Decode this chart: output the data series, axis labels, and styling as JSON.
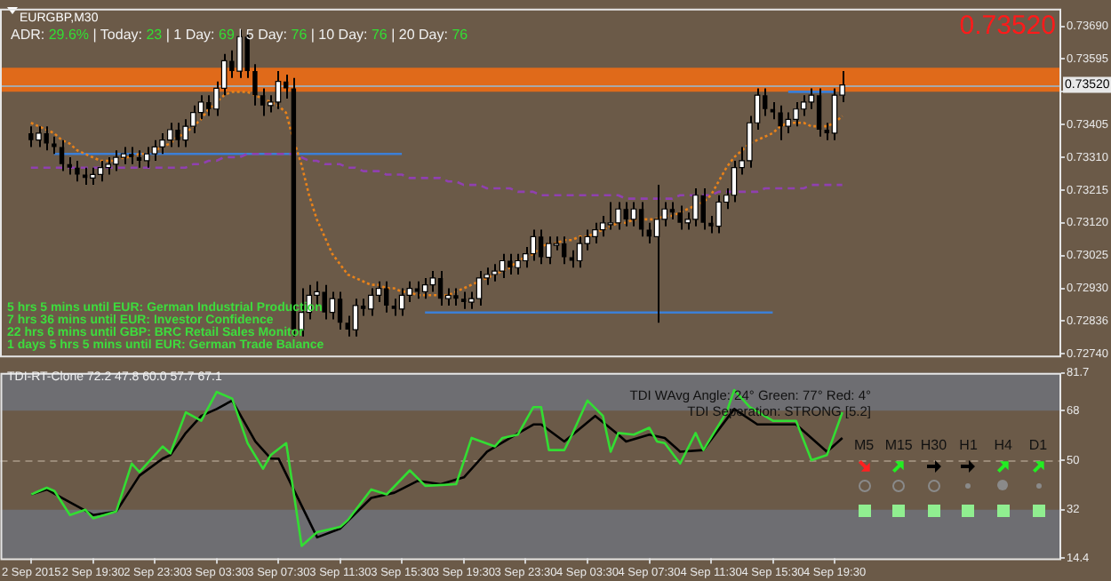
{
  "chart_data": [
    {
      "type": "candlestick",
      "title": "EURGBP,M30",
      "x": [
        "2015-09-02T15:30",
        "2015-09-02T16:00",
        "2015-09-02T16:30",
        "2015-09-02T17:00",
        "2015-09-02T17:30",
        "2015-09-02T18:00",
        "2015-09-02T18:30",
        "2015-09-02T19:00",
        "2015-09-02T19:30",
        "2015-09-02T20:00",
        "2015-09-02T20:30",
        "2015-09-02T21:00",
        "2015-09-02T21:30",
        "2015-09-02T22:00",
        "2015-09-02T22:30",
        "2015-09-02T23:00",
        "2015-09-02T23:30",
        "2015-09-03T00:00",
        "2015-09-03T00:30",
        "2015-09-03T01:00",
        "2015-09-03T01:30",
        "2015-09-03T02:00",
        "2015-09-03T02:30",
        "2015-09-03T03:00",
        "2015-09-03T03:30",
        "2015-09-03T04:00",
        "2015-09-03T04:30",
        "2015-09-03T05:00",
        "2015-09-03T05:30",
        "2015-09-03T06:00",
        "2015-09-03T06:30",
        "2015-09-03T07:00",
        "2015-09-03T07:30",
        "2015-09-03T08:00",
        "2015-09-03T08:30",
        "2015-09-03T09:00",
        "2015-09-03T09:30",
        "2015-09-03T10:00",
        "2015-09-03T10:30",
        "2015-09-03T11:00",
        "2015-09-03T11:30",
        "2015-09-03T12:00",
        "2015-09-03T12:30",
        "2015-09-03T13:00",
        "2015-09-03T13:30",
        "2015-09-03T14:00",
        "2015-09-03T14:30",
        "2015-09-03T15:00",
        "2015-09-03T15:30",
        "2015-09-03T16:00",
        "2015-09-03T16:30",
        "2015-09-03T17:00",
        "2015-09-03T17:30",
        "2015-09-03T18:00",
        "2015-09-03T18:30",
        "2015-09-03T19:00",
        "2015-09-03T19:30",
        "2015-09-03T20:00",
        "2015-09-03T20:30",
        "2015-09-03T21:00",
        "2015-09-03T21:30",
        "2015-09-03T22:00",
        "2015-09-03T22:30",
        "2015-09-03T23:00",
        "2015-09-03T23:30",
        "2015-09-04T00:00",
        "2015-09-04T00:30",
        "2015-09-04T01:00",
        "2015-09-04T01:30",
        "2015-09-04T02:00",
        "2015-09-04T02:30",
        "2015-09-04T03:00",
        "2015-09-04T03:30",
        "2015-09-04T04:00",
        "2015-09-04T04:30",
        "2015-09-04T05:00",
        "2015-09-04T05:30",
        "2015-09-04T06:00",
        "2015-09-04T06:30",
        "2015-09-04T07:00",
        "2015-09-04T07:30",
        "2015-09-04T08:00",
        "2015-09-04T08:30",
        "2015-09-04T09:00",
        "2015-09-04T09:30",
        "2015-09-04T10:00",
        "2015-09-04T10:30",
        "2015-09-04T11:00",
        "2015-09-04T11:30",
        "2015-09-04T12:00",
        "2015-09-04T12:30",
        "2015-09-04T13:00",
        "2015-09-04T13:30",
        "2015-09-04T14:00",
        "2015-09-04T14:30",
        "2015-09-04T15:00",
        "2015-09-04T15:30",
        "2015-09-04T16:00",
        "2015-09-04T16:30",
        "2015-09-04T17:00",
        "2015-09-04T17:30",
        "2015-09-04T18:00",
        "2015-09-04T18:30",
        "2015-09-04T19:00",
        "2015-09-04T19:30",
        "2015-09-04T20:00"
      ],
      "ohlc": [
        [
          0.7338,
          0.734,
          0.7334,
          0.7336
        ],
        [
          0.7336,
          0.734,
          0.7334,
          0.7338
        ],
        [
          0.7338,
          0.734,
          0.7333,
          0.7335
        ],
        [
          0.7335,
          0.7337,
          0.7332,
          0.7334
        ],
        [
          0.7334,
          0.7336,
          0.7327,
          0.7329
        ],
        [
          0.7329,
          0.7331,
          0.7326,
          0.7328
        ],
        [
          0.7328,
          0.733,
          0.7324,
          0.7326
        ],
        [
          0.7326,
          0.7328,
          0.7323,
          0.7325
        ],
        [
          0.7325,
          0.7328,
          0.7323,
          0.7326
        ],
        [
          0.7326,
          0.733,
          0.7324,
          0.7328
        ],
        [
          0.7328,
          0.7331,
          0.7326,
          0.7329
        ],
        [
          0.7329,
          0.7333,
          0.7327,
          0.7331
        ],
        [
          0.7331,
          0.7334,
          0.7329,
          0.7332
        ],
        [
          0.7332,
          0.7334,
          0.7329,
          0.7331
        ],
        [
          0.7331,
          0.7333,
          0.7328,
          0.733
        ],
        [
          0.733,
          0.7334,
          0.7328,
          0.7332
        ],
        [
          0.7332,
          0.7336,
          0.733,
          0.7334
        ],
        [
          0.7334,
          0.7338,
          0.7332,
          0.7336
        ],
        [
          0.7336,
          0.7341,
          0.7334,
          0.7339
        ],
        [
          0.7339,
          0.7341,
          0.7334,
          0.7336
        ],
        [
          0.7336,
          0.7342,
          0.7334,
          0.734
        ],
        [
          0.734,
          0.7346,
          0.7338,
          0.7344
        ],
        [
          0.7344,
          0.7349,
          0.7342,
          0.7347
        ],
        [
          0.7347,
          0.7349,
          0.7343,
          0.7345
        ],
        [
          0.7345,
          0.7353,
          0.7343,
          0.7351
        ],
        [
          0.7351,
          0.7361,
          0.7349,
          0.7359
        ],
        [
          0.7359,
          0.7362,
          0.7354,
          0.7356
        ],
        [
          0.7356,
          0.7368,
          0.7354,
          0.7366
        ],
        [
          0.7366,
          0.7367,
          0.7354,
          0.7356
        ],
        [
          0.7356,
          0.7358,
          0.7346,
          0.7349
        ],
        [
          0.7349,
          0.7351,
          0.7343,
          0.7346
        ],
        [
          0.7346,
          0.7349,
          0.7344,
          0.7347
        ],
        [
          0.7347,
          0.7356,
          0.7345,
          0.7353
        ],
        [
          0.7353,
          0.7355,
          0.7348,
          0.7351
        ],
        [
          0.7351,
          0.7354,
          0.7279,
          0.7281
        ],
        [
          0.7281,
          0.7293,
          0.7279,
          0.7286
        ],
        [
          0.7286,
          0.7294,
          0.7284,
          0.7291
        ],
        [
          0.7291,
          0.7295,
          0.7288,
          0.7292
        ],
        [
          0.7292,
          0.7294,
          0.7284,
          0.7286
        ],
        [
          0.7286,
          0.7292,
          0.7284,
          0.729
        ],
        [
          0.729,
          0.7292,
          0.7281,
          0.7283
        ],
        [
          0.7283,
          0.7285,
          0.7279,
          0.7281
        ],
        [
          0.7281,
          0.729,
          0.7279,
          0.7288
        ],
        [
          0.7288,
          0.729,
          0.7285,
          0.7287
        ],
        [
          0.7287,
          0.7293,
          0.7285,
          0.7291
        ],
        [
          0.7291,
          0.7295,
          0.7289,
          0.7293
        ],
        [
          0.7293,
          0.7295,
          0.7286,
          0.7288
        ],
        [
          0.7288,
          0.729,
          0.7285,
          0.7287
        ],
        [
          0.7287,
          0.7293,
          0.7285,
          0.7291
        ],
        [
          0.7291,
          0.7295,
          0.7289,
          0.7293
        ],
        [
          0.7293,
          0.7295,
          0.729,
          0.7292
        ],
        [
          0.7292,
          0.7296,
          0.729,
          0.7294
        ],
        [
          0.7294,
          0.7298,
          0.7292,
          0.7296
        ],
        [
          0.7296,
          0.7298,
          0.7288,
          0.729
        ],
        [
          0.729,
          0.7293,
          0.7288,
          0.7291
        ],
        [
          0.7291,
          0.7293,
          0.7288,
          0.729
        ],
        [
          0.729,
          0.7292,
          0.7287,
          0.7289
        ],
        [
          0.7289,
          0.7292,
          0.7287,
          0.729
        ],
        [
          0.729,
          0.7298,
          0.7288,
          0.7296
        ],
        [
          0.7296,
          0.7299,
          0.7294,
          0.7297
        ],
        [
          0.7297,
          0.73,
          0.7295,
          0.7298
        ],
        [
          0.7298,
          0.7303,
          0.7296,
          0.7301
        ],
        [
          0.7301,
          0.7303,
          0.7297,
          0.7299
        ],
        [
          0.7299,
          0.7303,
          0.7297,
          0.7301
        ],
        [
          0.7301,
          0.7305,
          0.7299,
          0.7303
        ],
        [
          0.7303,
          0.731,
          0.7301,
          0.7308
        ],
        [
          0.7308,
          0.731,
          0.73,
          0.7302
        ],
        [
          0.7302,
          0.7308,
          0.73,
          0.7306
        ],
        [
          0.7306,
          0.7308,
          0.7304,
          0.7306
        ],
        [
          0.7306,
          0.7308,
          0.73,
          0.7302
        ],
        [
          0.7302,
          0.7304,
          0.7299,
          0.7301
        ],
        [
          0.7301,
          0.7308,
          0.7299,
          0.7306
        ],
        [
          0.7306,
          0.731,
          0.7304,
          0.7308
        ],
        [
          0.7308,
          0.7312,
          0.7306,
          0.731
        ],
        [
          0.731,
          0.7314,
          0.7308,
          0.7312
        ],
        [
          0.7312,
          0.7318,
          0.731,
          0.7312
        ],
        [
          0.7312,
          0.7318,
          0.731,
          0.7316
        ],
        [
          0.7316,
          0.7318,
          0.7311,
          0.7313
        ],
        [
          0.7313,
          0.7318,
          0.7311,
          0.7316
        ],
        [
          0.7316,
          0.7318,
          0.7308,
          0.731
        ],
        [
          0.731,
          0.7312,
          0.7306,
          0.7308
        ],
        [
          0.7308,
          0.7323,
          0.7283,
          0.7313
        ],
        [
          0.7313,
          0.7318,
          0.7311,
          0.7316
        ],
        [
          0.7316,
          0.7318,
          0.7313,
          0.7315
        ],
        [
          0.7315,
          0.7317,
          0.731,
          0.7312
        ],
        [
          0.7312,
          0.7315,
          0.731,
          0.7313
        ],
        [
          0.7313,
          0.7322,
          0.7311,
          0.732
        ],
        [
          0.732,
          0.7322,
          0.731,
          0.7312
        ],
        [
          0.7312,
          0.7314,
          0.7309,
          0.7311
        ],
        [
          0.7311,
          0.732,
          0.7309,
          0.7318
        ],
        [
          0.7318,
          0.7322,
          0.7316,
          0.732
        ],
        [
          0.732,
          0.733,
          0.7318,
          0.7328
        ],
        [
          0.7328,
          0.7334,
          0.7326,
          0.733
        ],
        [
          0.733,
          0.7343,
          0.7328,
          0.7341
        ],
        [
          0.7341,
          0.7351,
          0.7339,
          0.7349
        ],
        [
          0.7349,
          0.7351,
          0.7343,
          0.7345
        ],
        [
          0.7345,
          0.7347,
          0.7342,
          0.7344
        ],
        [
          0.7344,
          0.7346,
          0.7336,
          0.734
        ],
        [
          0.734,
          0.7344,
          0.7338,
          0.7342
        ],
        [
          0.7342,
          0.7347,
          0.734,
          0.7345
        ],
        [
          0.7345,
          0.7349,
          0.7343,
          0.7347
        ],
        [
          0.7347,
          0.7351,
          0.7345,
          0.7349
        ],
        [
          0.7349,
          0.7351,
          0.7337,
          0.7339
        ],
        [
          0.7339,
          0.7341,
          0.7336,
          0.7338
        ],
        [
          0.7338,
          0.7351,
          0.7336,
          0.7349
        ],
        [
          0.7349,
          0.7356,
          0.7347,
          0.7352
        ]
      ],
      "series": [
        {
          "type": "line",
          "color": "#e8821a",
          "line_style": "dotted",
          "values": [
            0.7341,
            0.734,
            0.7339,
            0.7338,
            0.7336,
            0.7335,
            0.7333,
            0.7332,
            0.7331,
            0.733,
            0.733,
            0.733,
            0.7331,
            0.7331,
            0.7332,
            0.7332,
            0.7333,
            0.7334,
            0.7335,
            0.7337,
            0.7338,
            0.734,
            0.7342,
            0.7345,
            0.7347,
            0.7349,
            0.735,
            0.735,
            0.735,
            0.7349,
            0.7348,
            0.7347,
            0.7346,
            0.7344,
            0.7336,
            0.7329,
            0.732,
            0.7313,
            0.7308,
            0.7303,
            0.73,
            0.7297,
            0.7296,
            0.7295,
            0.7294,
            0.7294,
            0.7293,
            0.7293,
            0.7292,
            0.7292,
            0.7291,
            0.7291,
            0.7291,
            0.7291,
            0.7291,
            0.7292,
            0.7293,
            0.7294,
            0.7295,
            0.7296,
            0.7297,
            0.7298,
            0.7299,
            0.7301,
            0.7302,
            0.7303,
            0.7305,
            0.7306,
            0.7306,
            0.7307,
            0.7307,
            0.7308,
            0.7308,
            0.7309,
            0.731,
            0.7311,
            0.7312,
            0.7312,
            0.7313,
            0.7313,
            0.7313,
            0.7313,
            0.7314,
            0.7314,
            0.7315,
            0.7316,
            0.7317,
            0.7318,
            0.732,
            0.7324,
            0.7328,
            0.7331,
            0.7333,
            0.7335,
            0.7336,
            0.7337,
            0.7338,
            0.734,
            0.7341,
            0.7341,
            0.7341,
            0.734,
            0.734,
            0.734,
            0.7341,
            0.7343
          ]
        },
        {
          "type": "line",
          "color": "#9040b0",
          "line_style": "dashed",
          "values": [
            0.7328,
            0.7328,
            0.7328,
            0.7328,
            0.7328,
            0.7328,
            0.7328,
            0.7328,
            0.7328,
            0.7328,
            0.7328,
            0.7328,
            0.7328,
            0.7328,
            0.7328,
            0.7328,
            0.7328,
            0.7328,
            0.7328,
            0.7328,
            0.7328,
            0.7329,
            0.7329,
            0.733,
            0.733,
            0.7331,
            0.7331,
            0.7331,
            0.7332,
            0.7332,
            0.7332,
            0.7332,
            0.7332,
            0.7332,
            0.7332,
            0.7331,
            0.733,
            0.733,
            0.7329,
            0.7329,
            0.7329,
            0.7328,
            0.7328,
            0.7327,
            0.7327,
            0.7327,
            0.7326,
            0.7326,
            0.7326,
            0.7325,
            0.7325,
            0.7325,
            0.7325,
            0.7325,
            0.7324,
            0.7324,
            0.7323,
            0.7323,
            0.7323,
            0.7322,
            0.7322,
            0.7322,
            0.7322,
            0.7321,
            0.7321,
            0.7321,
            0.732,
            0.732,
            0.732,
            0.732,
            0.732,
            0.732,
            0.732,
            0.732,
            0.732,
            0.732,
            0.732,
            0.7319,
            0.7319,
            0.7319,
            0.7319,
            0.7319,
            0.7319,
            0.7319,
            0.732,
            0.732,
            0.732,
            0.732,
            0.732,
            0.7321,
            0.7321,
            0.7321,
            0.7321,
            0.7321,
            0.7321,
            0.7322,
            0.7322,
            0.7322,
            0.7322,
            0.7322,
            0.7322,
            0.7323,
            0.7323,
            0.7323,
            0.7323,
            0.7323
          ]
        },
        {
          "type": "line",
          "color": "#3c7fd6",
          "x": [
            "2015-09-02T17:00",
            "2015-09-03T15:30"
          ],
          "values": [
            0.7332,
            0.7332
          ]
        },
        {
          "type": "line",
          "color": "#3c7fd6",
          "x": [
            "2015-09-03T17:00",
            "2015-09-04T15:30"
          ],
          "values": [
            0.7286,
            0.7286
          ]
        },
        {
          "type": "line",
          "color": "#3c7fd6",
          "x": [
            "2015-09-04T16:30",
            "2015-09-04T19:30"
          ],
          "values": [
            0.735,
            0.735
          ]
        }
      ],
      "xlim": [
        "2015-09-02T13:30",
        "2015-09-05T10:10"
      ],
      "ylim": [
        0.72735,
        0.73741
      ],
      "yticks": [
        {
          "value": 0.7369,
          "label": "0.73690"
        },
        {
          "value": 0.73595,
          "label": "0.73595"
        },
        {
          "value": 0.735,
          "label": null
        },
        {
          "value": 0.73405,
          "label": "0.73405"
        },
        {
          "value": 0.7331,
          "label": "0.73310"
        },
        {
          "value": 0.73215,
          "label": "0.73215"
        },
        {
          "value": 0.7312,
          "label": "0.73120"
        },
        {
          "value": 0.73025,
          "label": "0.73025"
        },
        {
          "value": 0.7293,
          "label": "0.72930"
        },
        {
          "value": 0.72836,
          "label": "0.72836"
        },
        {
          "value": 0.7274,
          "label": "0.72740"
        }
      ],
      "tick_labels": "y",
      "bands": [
        {
          "axis": "y",
          "from": 0.735,
          "to": 0.7357,
          "color": "#e06a1a"
        }
      ],
      "ref_lines": [
        {
          "axis": "y",
          "value": 0.7352,
          "label": "0.73520",
          "color": "#a8a8a8"
        }
      ],
      "subtitle": "ADR: 29.6% | Today: 23 | 1 Day: 69 | 5 Day: 76 | 10 Day: 76 | 20 Day: 76",
      "annotations": [
        "0.73520",
        "5 hrs 5 mins until EUR: German Industrial Production",
        "7 hrs 36 mins until EUR: Investor Confidence",
        "22 hrs 6 mins until GBP: BRC Retail Sales Monitor",
        "1 days 5 hrs 5 mins until EUR: German Trade Balance"
      ]
    },
    {
      "type": "line",
      "title": "TDI-RT-Clone 72.2 47.8 60.0 57.7 67.1",
      "series": [
        {
          "color": "#33dd33",
          "x": [
            "2015-09-02T15:30",
            "2015-09-02T16:30",
            "2015-09-02T17:00",
            "2015-09-02T18:00",
            "2015-09-02T19:00",
            "2015-09-02T19:30",
            "2015-09-02T21:00",
            "2015-09-02T22:00",
            "2015-09-02T22:30",
            "2015-09-03T00:00",
            "2015-09-03T00:30",
            "2015-09-03T01:30",
            "2015-09-03T02:30",
            "2015-09-03T03:30",
            "2015-09-03T04:30",
            "2015-09-03T05:30",
            "2015-09-03T06:30",
            "2015-09-03T07:00",
            "2015-09-03T08:00",
            "2015-09-03T09:00",
            "2015-09-03T10:00",
            "2015-09-03T11:30",
            "2015-09-03T12:00",
            "2015-09-03T13:30",
            "2015-09-03T14:30",
            "2015-09-03T16:00",
            "2015-09-03T17:00",
            "2015-09-03T19:00",
            "2015-09-03T20:00",
            "2015-09-03T21:30",
            "2015-09-03T22:00",
            "2015-09-03T23:00",
            "2015-09-04T00:00",
            "2015-09-04T00:30",
            "2015-09-04T01:00",
            "2015-09-04T02:00",
            "2015-09-04T02:30",
            "2015-09-04T03:30",
            "2015-09-04T04:30",
            "2015-09-04T05:00",
            "2015-09-04T05:30",
            "2015-09-04T06:30",
            "2015-09-04T07:30",
            "2015-09-04T08:00",
            "2015-09-04T08:30",
            "2015-09-04T09:30",
            "2015-09-04T10:30",
            "2015-09-04T11:00",
            "2015-09-04T12:30",
            "2015-09-04T13:00",
            "2015-09-04T14:00",
            "2015-09-04T15:30",
            "2015-09-04T17:00",
            "2015-09-04T18:00",
            "2015-09-04T19:00",
            "2015-09-04T20:00"
          ],
          "values": [
            37.6,
            40,
            38.8,
            30.1,
            32,
            28.9,
            31.4,
            48.8,
            45.7,
            55,
            52.5,
            67.4,
            64.3,
            74.8,
            72.4,
            56.2,
            46.9,
            51.9,
            56.2,
            18.9,
            23.9,
            25.8,
            28.3,
            39.4,
            37.6,
            46.3,
            40.7,
            41.3,
            58.1,
            55,
            58.1,
            59.3,
            69.3,
            69.3,
            53.7,
            53.7,
            59.3,
            71.7,
            66.1,
            53.1,
            59.9,
            59.3,
            61.8,
            56.8,
            56.2,
            48.8,
            59.9,
            53.7,
            67.4,
            75.5,
            69.3,
            64.3,
            64.3,
            50,
            51.9,
            67.4
          ]
        },
        {
          "color": "#000000",
          "x": [
            "2015-09-02T15:30",
            "2015-09-02T16:30",
            "2015-09-02T17:30",
            "2015-09-02T19:30",
            "2015-09-02T21:00",
            "2015-09-02T22:30",
            "2015-09-03T00:00",
            "2015-09-03T00:30",
            "2015-09-03T01:30",
            "2015-09-03T02:30",
            "2015-09-03T03:30",
            "2015-09-03T04:30",
            "2015-09-03T06:00",
            "2015-09-03T07:00",
            "2015-09-03T07:30",
            "2015-09-03T10:00",
            "2015-09-03T11:30",
            "2015-09-03T13:30",
            "2015-09-03T15:00",
            "2015-09-03T16:30",
            "2015-09-03T18:00",
            "2015-09-03T19:30",
            "2015-09-03T21:00",
            "2015-09-03T22:30",
            "2015-09-04T00:00",
            "2015-09-04T00:30",
            "2015-09-04T02:00",
            "2015-09-04T04:00",
            "2015-09-04T05:30",
            "2015-09-04T06:00",
            "2015-09-04T07:30",
            "2015-09-04T08:30",
            "2015-09-04T09:30",
            "2015-09-04T11:00",
            "2015-09-04T13:00",
            "2015-09-04T14:30",
            "2015-09-04T17:00",
            "2015-09-04T19:00",
            "2015-09-04T20:00"
          ],
          "values": [
            37.6,
            39.4,
            36.3,
            30.1,
            31.4,
            44.4,
            50.6,
            51.9,
            59.9,
            66.1,
            68.6,
            71.7,
            56.8,
            50.6,
            50.6,
            22,
            25.2,
            36.3,
            38.2,
            42.5,
            41.3,
            43.8,
            53.1,
            58.1,
            63,
            63,
            56.8,
            66.1,
            59.3,
            56.8,
            59.3,
            58.1,
            53.1,
            53.7,
            68.6,
            63,
            63,
            53.1,
            58.1
          ]
        }
      ],
      "xlim": [
        "2015-09-02T13:30",
        "2015-09-05T10:10"
      ],
      "xticks": [
        {
          "value": "2015-09-02T15:30",
          "label": "2 Sep 2015"
        },
        {
          "value": "2015-09-02T19:30",
          "label": "2 Sep 19:30"
        },
        {
          "value": "2015-09-02T23:30",
          "label": "2 Sep 23:30"
        },
        {
          "value": "2015-09-03T03:30",
          "label": "3 Sep 03:30"
        },
        {
          "value": "2015-09-03T07:30",
          "label": "3 Sep 07:30"
        },
        {
          "value": "2015-09-03T11:30",
          "label": "3 Sep 11:30"
        },
        {
          "value": "2015-09-03T15:30",
          "label": "3 Sep 15:30"
        },
        {
          "value": "2015-09-03T19:30",
          "label": "3 Sep 19:30"
        },
        {
          "value": "2015-09-03T23:30",
          "label": "3 Sep 23:30"
        },
        {
          "value": "2015-09-04T03:30",
          "label": "4 Sep 03:30"
        },
        {
          "value": "2015-09-04T07:30",
          "label": "4 Sep 07:30"
        },
        {
          "value": "2015-09-04T11:30",
          "label": "4 Sep 11:30"
        },
        {
          "value": "2015-09-04T15:30",
          "label": "4 Sep 15:30"
        },
        {
          "value": "2015-09-04T19:30",
          "label": "4 Sep 19:30"
        }
      ],
      "ylim": [
        14.4,
        81.7
      ],
      "yticks": [
        81.7,
        68,
        50,
        32,
        14.4
      ],
      "bands": [
        {
          "axis": "y",
          "from": 68,
          "to": 81.7,
          "color": "#6e6e72"
        },
        {
          "axis": "y",
          "from": 14.4,
          "to": 32,
          "color": "#6e6e72"
        }
      ],
      "ref_lines": [
        {
          "axis": "y",
          "value": 50,
          "line_style": "dashed",
          "color": "#9a8a78"
        }
      ],
      "annotations": [
        "TDI WAvg Angle: 24° Green: 77° Red: 4°",
        "TDI Seperation: STRONG [5.2]",
        "M5",
        "M15",
        "H30",
        "H1",
        "H4",
        "D1"
      ]
    }
  ]
}
